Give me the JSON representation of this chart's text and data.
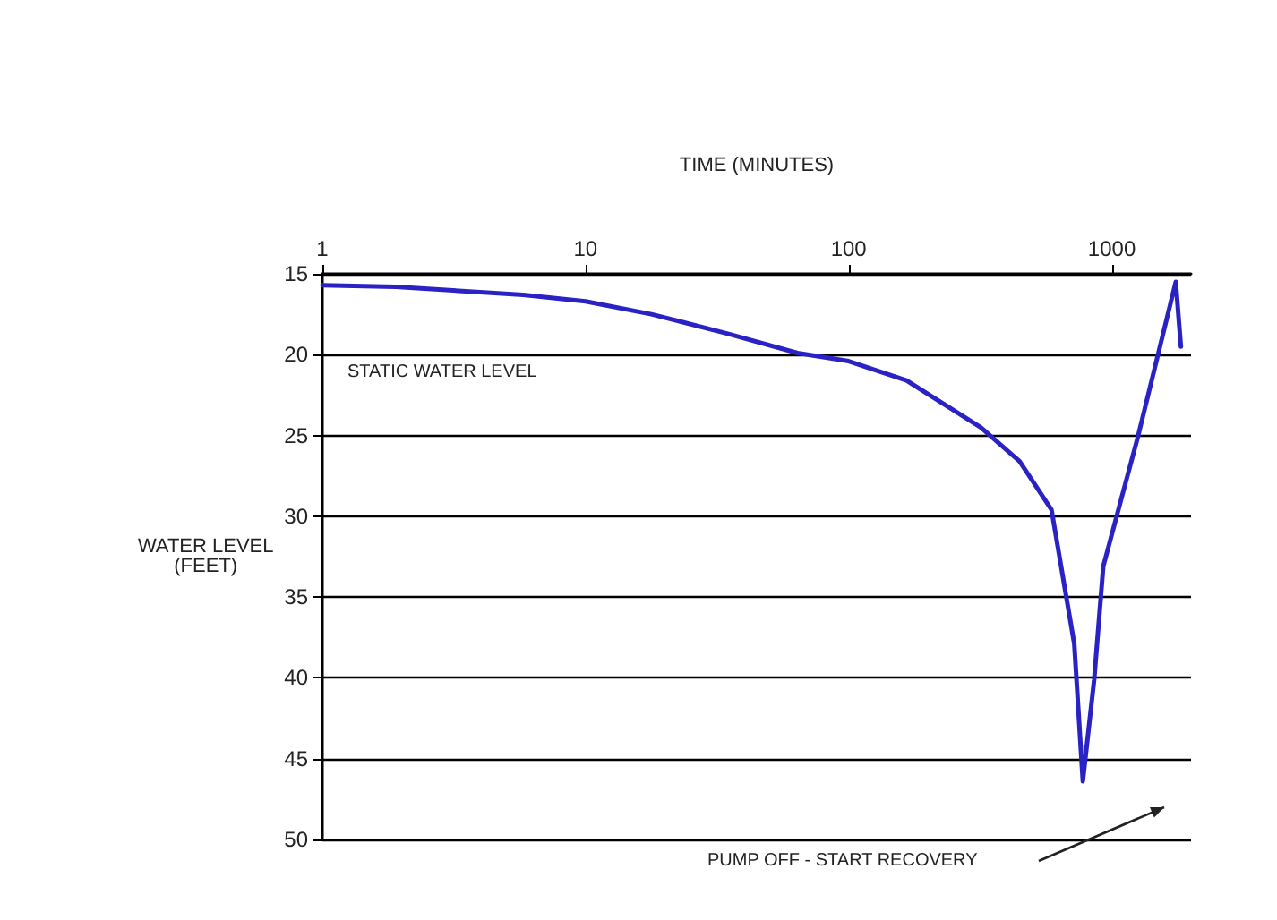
{
  "chart_data": {
    "type": "line",
    "xlabel": "TIME (MINUTES)",
    "ylabel": "WATER LEVEL\n(FEET)",
    "x": [
      1,
      1.9,
      5.8,
      10,
      17.8,
      34.7,
      64,
      100,
      166,
      318,
      446,
      590,
      720,
      776,
      857,
      928,
      1260,
      1750,
      1830
    ],
    "series": [
      {
        "color": "#2a22c4",
        "values": [
          15.7,
          15.8,
          16.3,
          16.7,
          17.5,
          18.7,
          19.9,
          20.4,
          21.6,
          24.5,
          26.6,
          29.6,
          37.9,
          46.4,
          40.1,
          33.1,
          25,
          15.5,
          19.5
        ]
      }
    ],
    "log": "x",
    "xlim": [
      1,
      2000
    ],
    "xticks": [
      1,
      10,
      100,
      1000
    ],
    "ylim": [
      50,
      15
    ],
    "yticks": [
      15,
      20,
      25,
      30,
      35,
      40,
      45,
      50
    ],
    "grid": "y",
    "marker": "none",
    "line_style": "solid",
    "annotations": [
      "STATIC WATER LEVEL",
      "PUMP OFF - START RECOVERY"
    ]
  }
}
